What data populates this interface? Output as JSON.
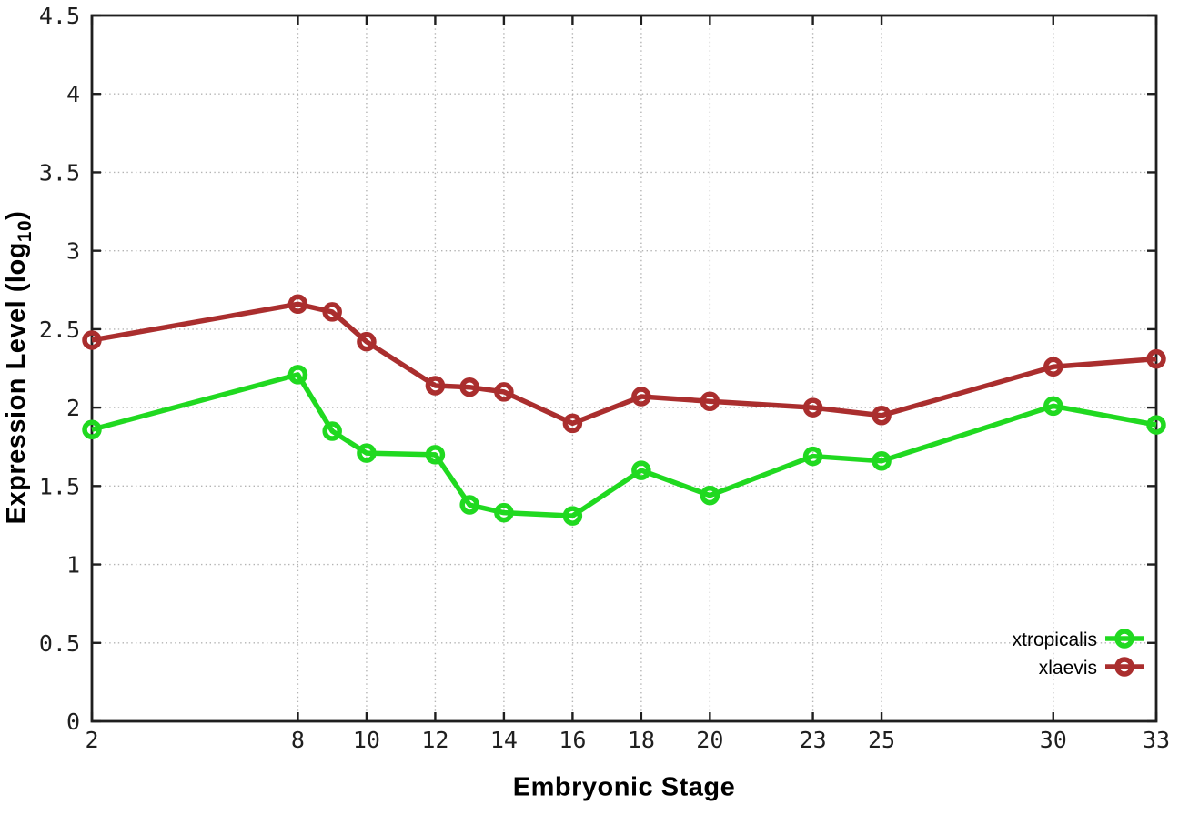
{
  "chart_data": {
    "type": "line",
    "title": "",
    "xlabel": "Embryonic Stage",
    "ylabel": {
      "prefix": "Expression Level (log",
      "sub": "10",
      "suffix": ")"
    },
    "xlim": [
      2,
      33
    ],
    "ylim": [
      0,
      4.5
    ],
    "grid": true,
    "legend_position": "bottom-right-inside",
    "x": [
      2,
      8,
      9,
      10,
      12,
      13,
      14,
      16,
      18,
      20,
      23,
      25,
      30,
      33
    ],
    "series": [
      {
        "name": "xtropicalis",
        "color": "#20d920",
        "values": [
          1.86,
          2.21,
          1.85,
          1.71,
          1.7,
          1.38,
          1.33,
          1.31,
          1.6,
          1.44,
          1.69,
          1.66,
          2.01,
          1.89
        ]
      },
      {
        "name": "xlaevis",
        "color": "#aa2e2e",
        "values": [
          2.43,
          2.66,
          2.61,
          2.42,
          2.14,
          2.13,
          2.1,
          1.9,
          2.07,
          2.04,
          2.0,
          1.95,
          2.26,
          2.31
        ]
      }
    ],
    "xticks": {
      "values": [
        2,
        8,
        10,
        12,
        14,
        16,
        18,
        20,
        23,
        25,
        30,
        33
      ],
      "labels": [
        "2",
        "8",
        "10",
        "12",
        "14",
        "16",
        "18",
        "20",
        "23",
        "25",
        "30",
        "33"
      ]
    },
    "yticks": {
      "values": [
        0,
        0.5,
        1,
        1.5,
        2,
        2.5,
        3,
        3.5,
        4,
        4.5
      ],
      "labels": [
        "0",
        "0.5",
        "1",
        "1.5",
        "2",
        "2.5",
        "3",
        "3.5",
        "4",
        "4.5"
      ]
    },
    "colors": {
      "axis": "#1f1f1f",
      "grid": "#b3b3b3",
      "background": "#ffffff",
      "tick_text": "#1f1f1f",
      "legend_text": "#000000"
    }
  }
}
